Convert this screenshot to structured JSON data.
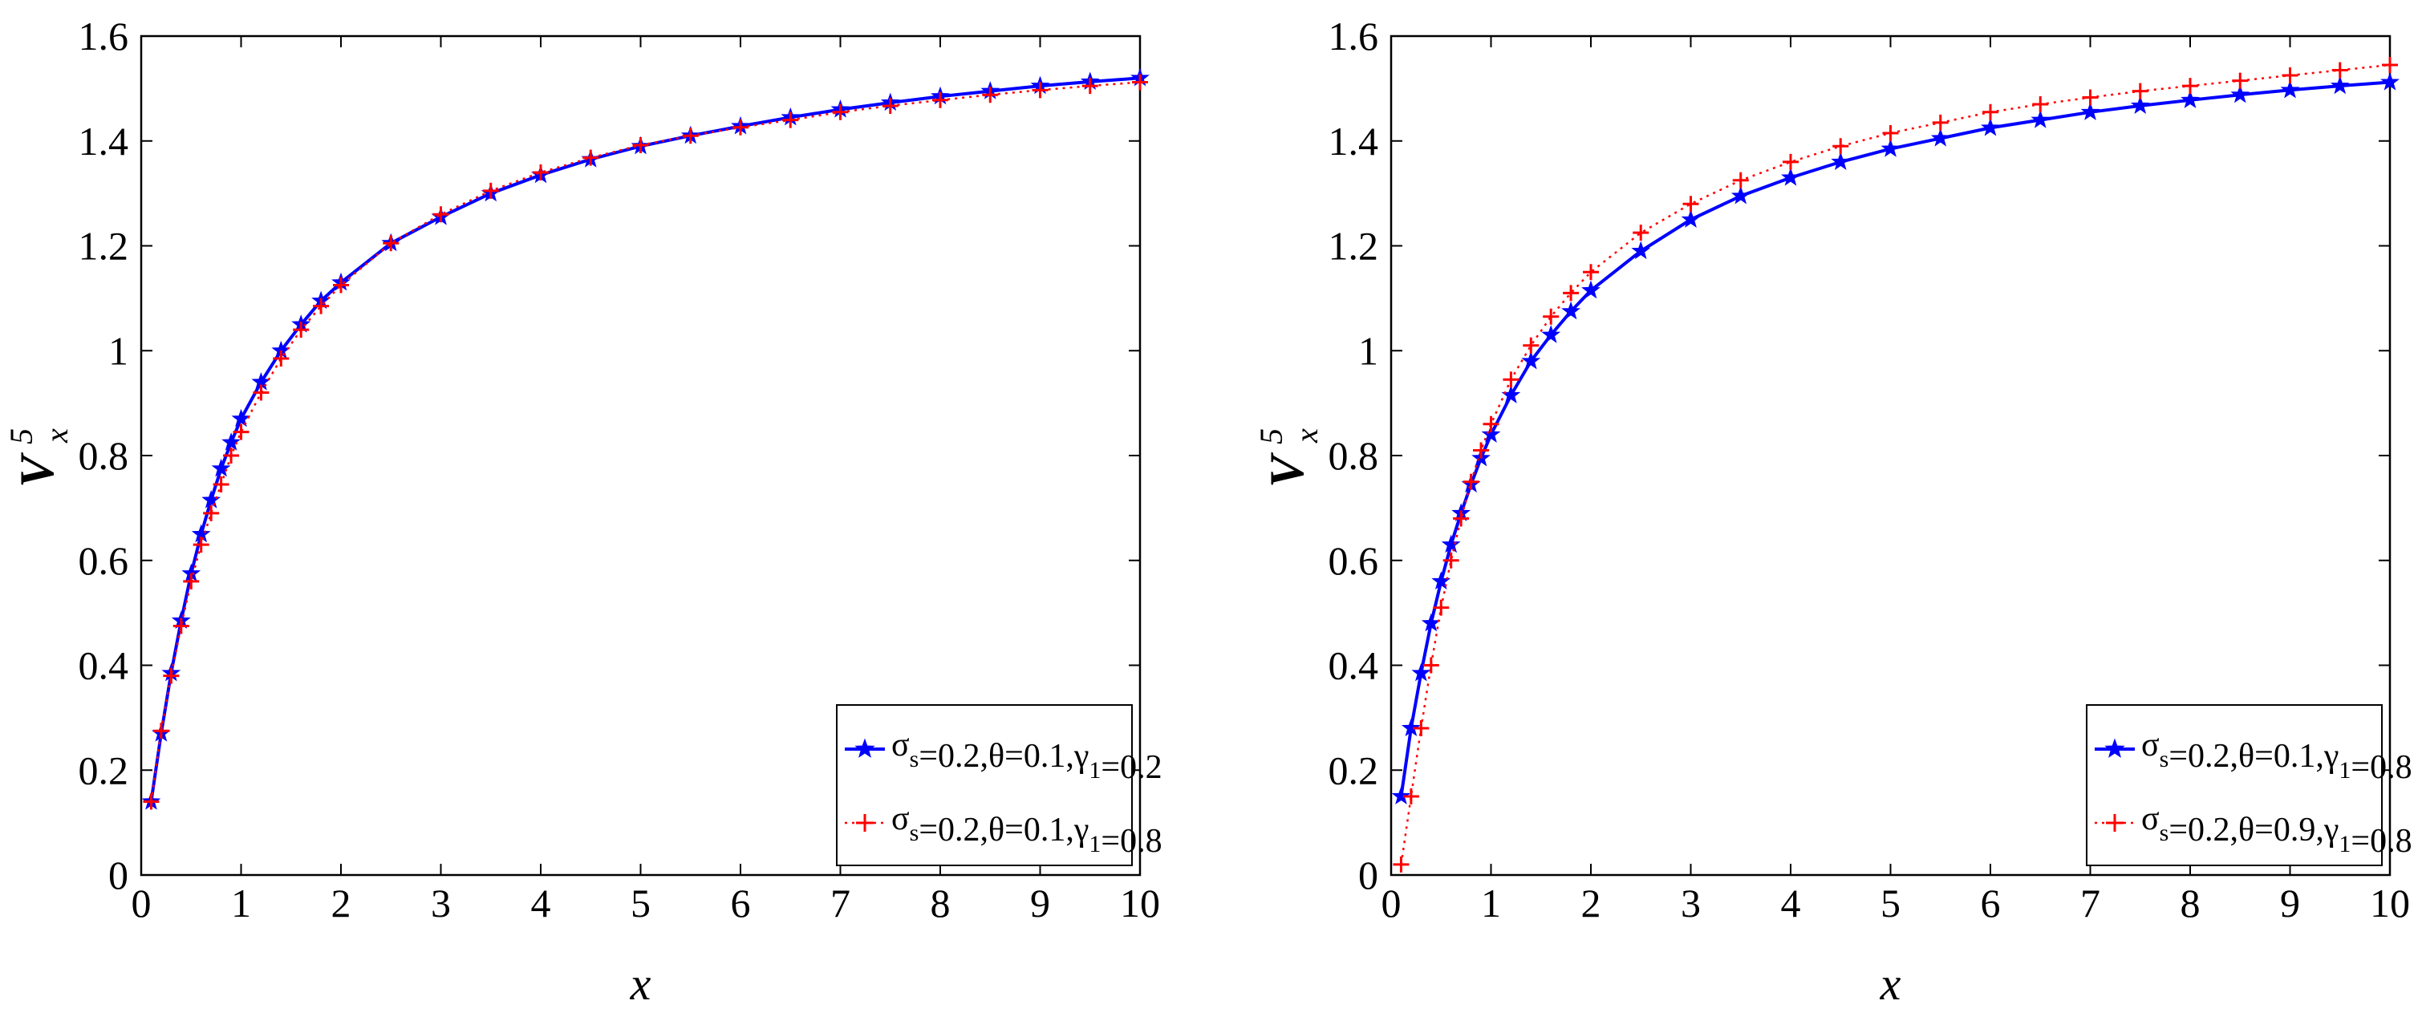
{
  "chart_data": [
    {
      "type": "line",
      "title": "",
      "xlabel": "x",
      "ylabel": {
        "base": "V",
        "superscript": "5",
        "subscript": "x"
      },
      "xlim": [
        0,
        10
      ],
      "ylim": [
        0,
        1.6
      ],
      "xticks": [
        "0",
        "1",
        "2",
        "3",
        "4",
        "5",
        "6",
        "7",
        "8",
        "9",
        "10"
      ],
      "yticks": [
        "0",
        "0.2",
        "0.4",
        "0.6",
        "0.8",
        "1",
        "1.2",
        "1.4",
        "1.6"
      ],
      "grid": false,
      "legend_position": "bottom-right",
      "series": [
        {
          "legend": {
            "p1": "σ",
            "p1sub": "s",
            "p2": "=0.2,θ=0.1,γ",
            "p2sub": "1",
            "p3": "=0.2"
          },
          "color": "#0000ff",
          "marker": "star",
          "line": "solid",
          "x": [
            0.1,
            0.2,
            0.3,
            0.4,
            0.5,
            0.6,
            0.7,
            0.8,
            0.9,
            1.0,
            1.2,
            1.4,
            1.6,
            1.8,
            2.0,
            2.5,
            3.0,
            3.5,
            4.0,
            4.5,
            5.0,
            5.5,
            6.0,
            6.5,
            7.0,
            7.5,
            8.0,
            8.5,
            9.0,
            9.5,
            10.0
          ],
          "y": [
            0.14,
            0.27,
            0.385,
            0.485,
            0.575,
            0.65,
            0.715,
            0.775,
            0.825,
            0.87,
            0.94,
            1.0,
            1.05,
            1.095,
            1.13,
            1.205,
            1.255,
            1.3,
            1.335,
            1.365,
            1.39,
            1.41,
            1.428,
            1.445,
            1.46,
            1.473,
            1.485,
            1.495,
            1.505,
            1.513,
            1.52
          ]
        },
        {
          "legend": {
            "p1": "σ",
            "p1sub": "s",
            "p2": "=0.2,θ=0.1,γ",
            "p2sub": "1",
            "p3": "=0.8"
          },
          "color": "#ff0000",
          "marker": "plus",
          "line": "dotted",
          "x": [
            0.1,
            0.2,
            0.3,
            0.4,
            0.5,
            0.6,
            0.7,
            0.8,
            0.9,
            1.0,
            1.2,
            1.4,
            1.6,
            1.8,
            2.0,
            2.5,
            3.0,
            3.5,
            4.0,
            4.5,
            5.0,
            5.5,
            6.0,
            6.5,
            7.0,
            7.5,
            8.0,
            8.5,
            9.0,
            9.5,
            10.0
          ],
          "y": [
            0.14,
            0.275,
            0.38,
            0.475,
            0.56,
            0.63,
            0.69,
            0.745,
            0.8,
            0.845,
            0.92,
            0.985,
            1.04,
            1.085,
            1.125,
            1.205,
            1.26,
            1.305,
            1.34,
            1.368,
            1.392,
            1.41,
            1.426,
            1.44,
            1.455,
            1.467,
            1.478,
            1.488,
            1.497,
            1.505,
            1.512
          ]
        }
      ]
    },
    {
      "type": "line",
      "title": "",
      "xlabel": "x",
      "ylabel": {
        "base": "V",
        "superscript": "5",
        "subscript": "x"
      },
      "xlim": [
        0,
        10
      ],
      "ylim": [
        0,
        1.6
      ],
      "xticks": [
        "0",
        "1",
        "2",
        "3",
        "4",
        "5",
        "6",
        "7",
        "8",
        "9",
        "10"
      ],
      "yticks": [
        "0",
        "0.2",
        "0.4",
        "0.6",
        "0.8",
        "1",
        "1.2",
        "1.4",
        "1.6"
      ],
      "grid": false,
      "legend_position": "bottom-right",
      "series": [
        {
          "legend": {
            "p1": "σ",
            "p1sub": "s",
            "p2": "=0.2,θ=0.1,γ",
            "p2sub": "1",
            "p3": "=0.8"
          },
          "color": "#0000ff",
          "marker": "star",
          "line": "solid",
          "x": [
            0.1,
            0.2,
            0.3,
            0.4,
            0.5,
            0.6,
            0.7,
            0.8,
            0.9,
            1.0,
            1.2,
            1.4,
            1.6,
            1.8,
            2.0,
            2.5,
            3.0,
            3.5,
            4.0,
            4.5,
            5.0,
            5.5,
            6.0,
            6.5,
            7.0,
            7.5,
            8.0,
            8.5,
            9.0,
            9.5,
            10.0
          ],
          "y": [
            0.15,
            0.28,
            0.385,
            0.48,
            0.56,
            0.63,
            0.69,
            0.745,
            0.795,
            0.84,
            0.915,
            0.98,
            1.03,
            1.075,
            1.115,
            1.19,
            1.25,
            1.295,
            1.33,
            1.36,
            1.385,
            1.405,
            1.425,
            1.44,
            1.455,
            1.467,
            1.478,
            1.488,
            1.497,
            1.505,
            1.512
          ]
        },
        {
          "legend": {
            "p1": "σ",
            "p1sub": "s",
            "p2": "=0.2,θ=0.9,γ",
            "p2sub": "1",
            "p3": "=0.8"
          },
          "color": "#ff0000",
          "marker": "plus",
          "line": "dotted",
          "x": [
            0.1,
            0.2,
            0.3,
            0.4,
            0.5,
            0.6,
            0.7,
            0.8,
            0.9,
            1.0,
            1.2,
            1.4,
            1.6,
            1.8,
            2.0,
            2.5,
            3.0,
            3.5,
            4.0,
            4.5,
            5.0,
            5.5,
            6.0,
            6.5,
            7.0,
            7.5,
            8.0,
            8.5,
            9.0,
            9.5,
            10.0
          ],
          "y": [
            0.02,
            0.15,
            0.28,
            0.4,
            0.51,
            0.6,
            0.68,
            0.75,
            0.81,
            0.86,
            0.945,
            1.01,
            1.065,
            1.11,
            1.15,
            1.225,
            1.28,
            1.325,
            1.36,
            1.39,
            1.415,
            1.435,
            1.455,
            1.47,
            1.483,
            1.495,
            1.505,
            1.515,
            1.525,
            1.535,
            1.545
          ]
        }
      ]
    }
  ]
}
